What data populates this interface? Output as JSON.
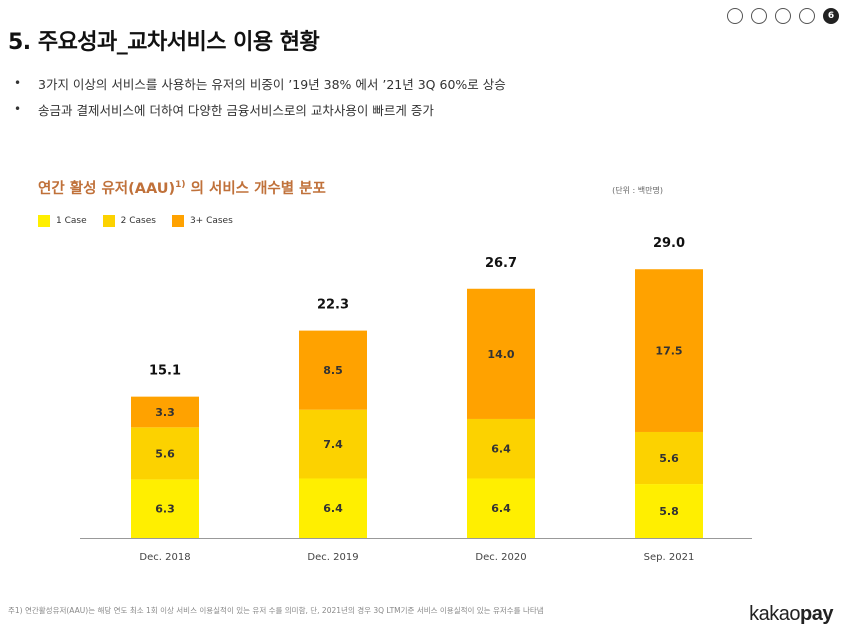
{
  "page": {
    "title": "5. 주요성과_교차서비스 이용 현황",
    "pager": {
      "count": 5,
      "current_label": "6"
    },
    "bullets": [
      "3가지 이상의 서비스를 사용하는 유저의 비중이 ’19년 38% 에서 ’21년 3Q 60%로 상승",
      "송금과 결제서비스에 더하여 다양한 금융서비스로의 교차사용이 빠르게 증가"
    ],
    "bullet_glyph": "•",
    "footnote": "주1) 연간활성유저(AAU)는 해당 연도 최소 1회 이상 서비스 이용실적이 있는 유저 수를 의미함, 단, 2021년의 경우 3Q LTM기준 서비스 이용실적이 있는 유저수를 나타냄",
    "logo": {
      "part1": "kakao",
      "part2": "pay"
    }
  },
  "chart_data": {
    "type": "bar",
    "stacked": true,
    "title": "연간 활성 유저(AAU)",
    "title_sup": "1)",
    "title_suffix": " 의 서비스 개수별 분포",
    "unit": "(단위 : 백만명)",
    "categories": [
      "Dec. 2018",
      "Dec. 2019",
      "Dec. 2020",
      "Sep. 2021"
    ],
    "series": [
      {
        "name": "1 Case",
        "color": "#ffef00",
        "values": [
          6.3,
          6.4,
          6.4,
          5.8
        ]
      },
      {
        "name": "2 Cases",
        "color": "#fcd200",
        "values": [
          5.6,
          7.4,
          6.4,
          5.6
        ]
      },
      {
        "name": "3+ Cases",
        "color": "#ffa200",
        "values": [
          3.3,
          8.5,
          14.0,
          17.5
        ]
      }
    ],
    "totals": [
      "15.1",
      "22.3",
      "26.7",
      "29.0"
    ],
    "grid": false,
    "legend": "top-left"
  }
}
